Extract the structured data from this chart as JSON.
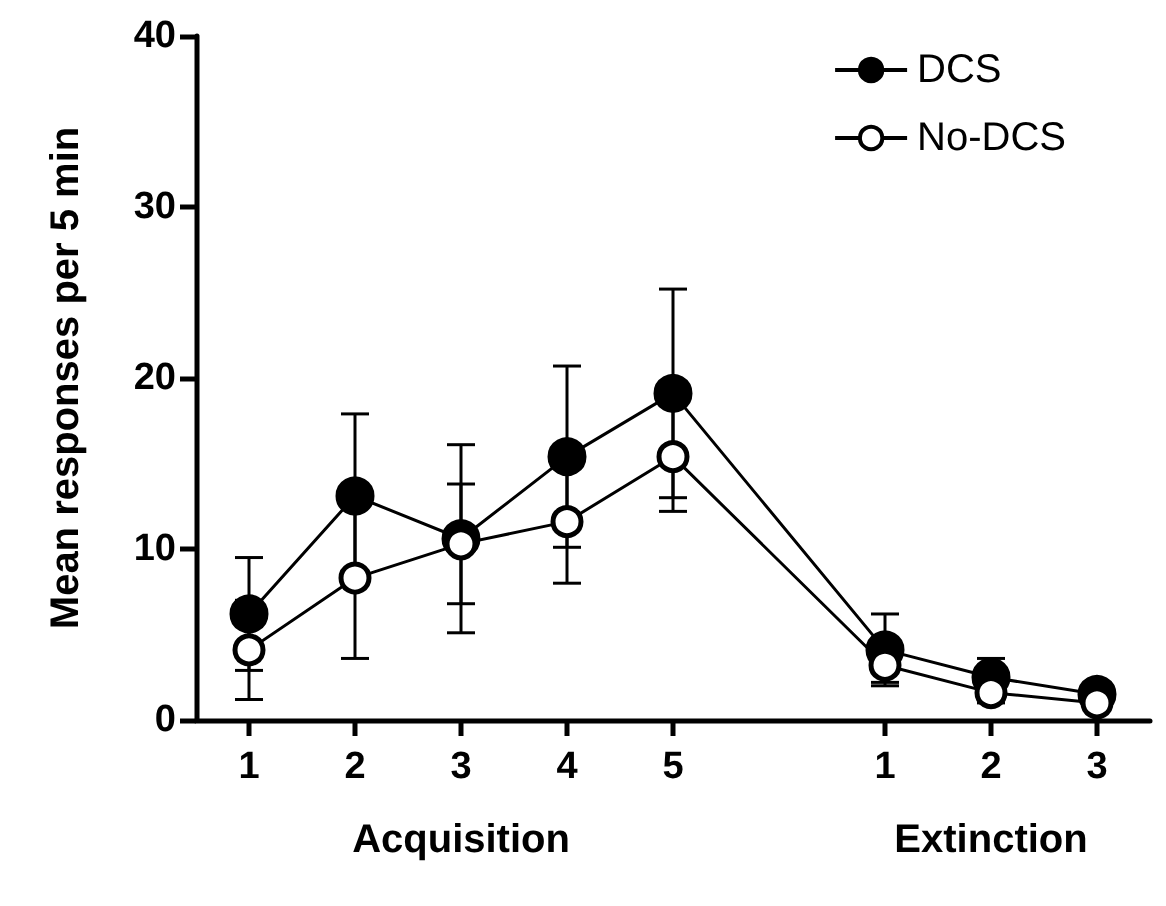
{
  "chart_data": {
    "type": "line",
    "ylabel": "Mean responses per 5 min",
    "categories": [
      "1",
      "2",
      "3",
      "4",
      "5",
      null,
      "1",
      "2",
      "3"
    ],
    "ylim": [
      0,
      40
    ],
    "yticks": [
      0,
      10,
      20,
      30,
      40
    ],
    "series": [
      {
        "name": "DCS",
        "color": "#000000",
        "values": [
          6.2,
          13.1,
          10.6,
          15.4,
          19.1,
          null,
          4.1,
          2.5,
          1.5
        ],
        "errors": [
          3.3,
          4.8,
          5.5,
          5.3,
          6.1,
          null,
          2.1,
          1.1,
          null
        ]
      },
      {
        "name": "No-DCS",
        "color": "#ffffff",
        "values": [
          4.1,
          8.3,
          10.3,
          11.6,
          15.4,
          null,
          3.2,
          1.6,
          1.0
        ],
        "errors": [
          2.9,
          4.7,
          3.5,
          3.6,
          3.2,
          null,
          1.0,
          0.6,
          null
        ]
      }
    ],
    "annotations": [
      "Acquisition",
      "Extinction"
    ],
    "marker": "circle",
    "line_style": "solid",
    "grid": false,
    "legend": "top right"
  }
}
